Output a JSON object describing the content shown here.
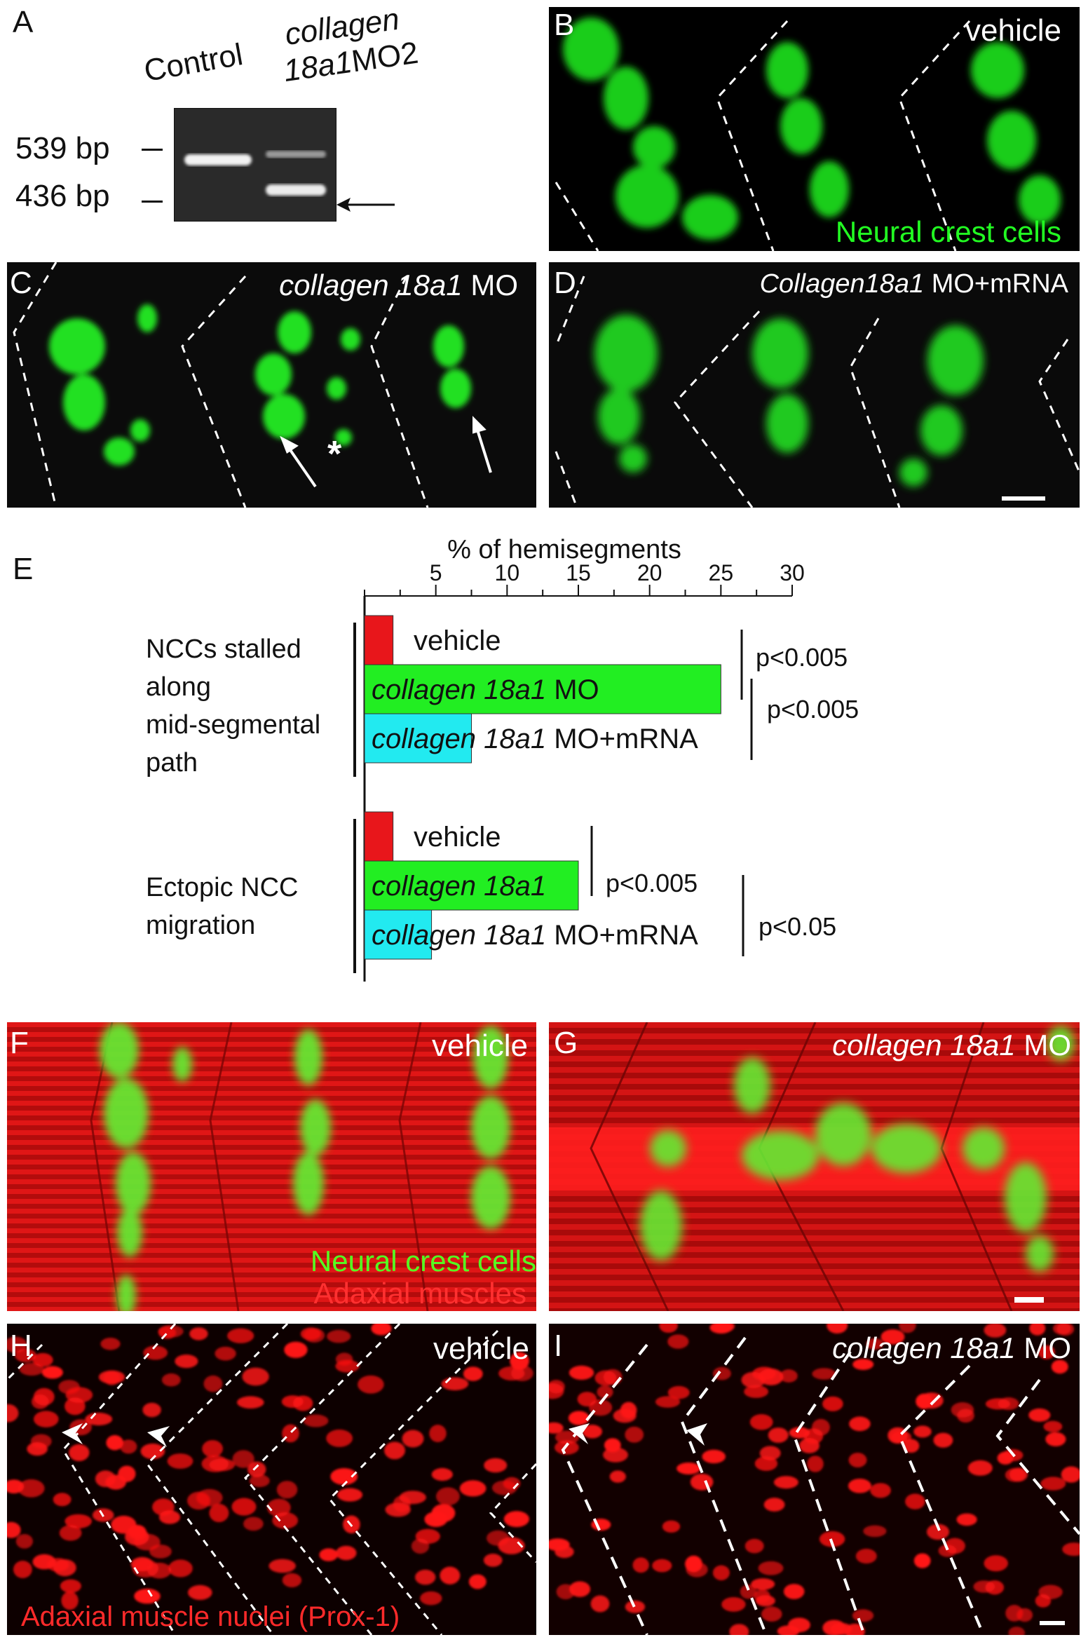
{
  "panels": {
    "A": {
      "label": "A",
      "lane_control": "Control",
      "lane_mo_line1": "collagen",
      "lane_mo_line2_italic": "18a1",
      "lane_mo_line2_rest": "MO2",
      "marker_539": "539 bp",
      "marker_436": "436 bp"
    },
    "B": {
      "label": "B",
      "condition": "vehicle",
      "stain": "Neural crest cells"
    },
    "C": {
      "label": "C",
      "condition_italic": "collagen 18a1",
      "condition_rest": " MO",
      "asterisk": "*"
    },
    "D": {
      "label": "D",
      "condition_italic": "Collagen18a1",
      "condition_rest": " MO+mRNA"
    },
    "E": {
      "label": "E"
    },
    "F": {
      "label": "F",
      "condition": "vehicle",
      "stain_green": "Neural crest cells",
      "stain_red": "Adaxial muscles"
    },
    "G": {
      "label": "G",
      "condition_italic": "collagen 18a1",
      "condition_rest": " MO"
    },
    "H": {
      "label": "H",
      "condition": "vehicle",
      "stain": "Adaxial muscle nuclei (Prox-1)"
    },
    "I": {
      "label": "I",
      "condition_italic": "collagen 18a1",
      "condition_rest": " MO"
    }
  },
  "colors": {
    "green": "#22ff22",
    "red": "#ff1a1a",
    "cyan": "#22eaf0",
    "bar_red": "#e8161b",
    "bar_green": "#22ee22"
  },
  "chart_data": {
    "type": "bar",
    "orientation": "horizontal",
    "xlabel": "% of hemisegments",
    "xticks": [
      5,
      10,
      15,
      20,
      25,
      30
    ],
    "xlim": [
      0,
      30
    ],
    "groups": [
      {
        "name_lines": [
          "NCCs stalled",
          "along",
          "mid-segmental",
          "path"
        ],
        "bars": [
          {
            "label": "vehicle",
            "value": 2,
            "color": "#e8161b"
          },
          {
            "label_italic": "collagen 18a1",
            "label_rest": " MO",
            "value": 25,
            "color": "#22ee22"
          },
          {
            "label_italic": "collagen 18a1",
            "label_rest": " MO+mRNA",
            "value": 7.5,
            "color": "#22eaf0"
          }
        ],
        "pvalues": [
          "p<0.005",
          "p<0.005"
        ]
      },
      {
        "name_lines": [
          "Ectopic NCC",
          "migration"
        ],
        "bars": [
          {
            "label": "vehicle",
            "value": 2,
            "color": "#e8161b"
          },
          {
            "label_italic": "collagen 18a1",
            "label_rest": "",
            "value": 15,
            "color": "#22ee22"
          },
          {
            "label_italic": "collagen 18a1",
            "label_rest": " MO+mRNA",
            "value": 4.7,
            "color": "#22eaf0"
          }
        ],
        "pvalues": [
          "p<0.005",
          "p<0.05"
        ]
      }
    ]
  }
}
